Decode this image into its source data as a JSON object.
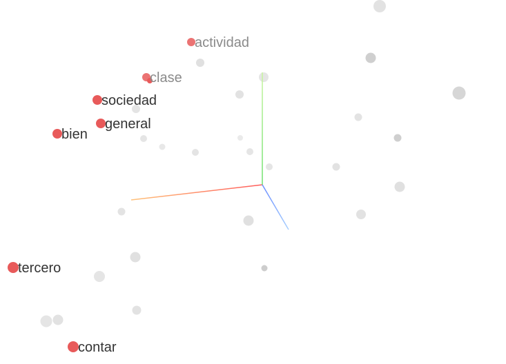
{
  "projector": {
    "highlight_color": "#e85a5a",
    "label_color": "#333333",
    "label_faded_color": "#8a8a8a",
    "background_point_color": "#d9d9d9",
    "axes": {
      "x_color": "#ff6b4a",
      "y_color": "#7be37b",
      "z_color": "#7a9bff"
    },
    "highlighted_words": [
      {
        "label": "actividad"
      },
      {
        "label": "clase"
      },
      {
        "label": "sociedad"
      },
      {
        "label": "general"
      },
      {
        "label": "bien"
      },
      {
        "label": "tercero"
      },
      {
        "label": "contar"
      }
    ]
  }
}
